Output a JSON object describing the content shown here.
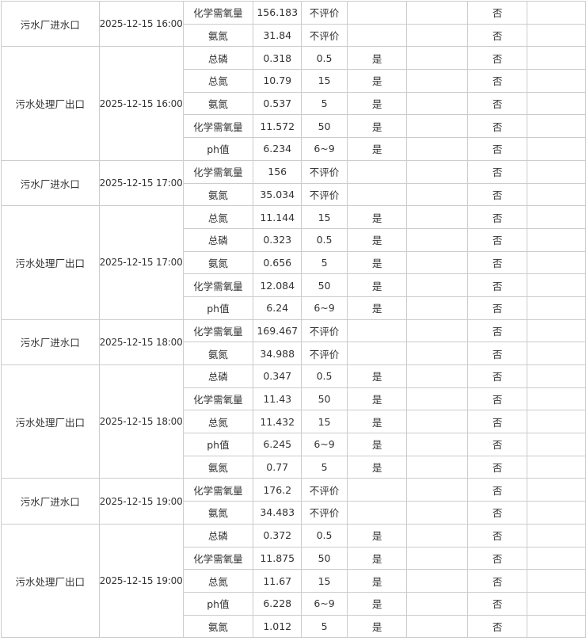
{
  "groups": [
    {
      "site": "污水厂进水口",
      "time": "2025-12-15 16:00",
      "rows": [
        {
          "param": "化学需氧量",
          "value": "156.183",
          "limit": "不评价",
          "pass": "",
          "extra": "",
          "over": "否"
        },
        {
          "param": "氨氮",
          "value": "31.84",
          "limit": "不评价",
          "pass": "",
          "extra": "",
          "over": "否"
        }
      ]
    },
    {
      "site": "污水处理厂出口",
      "time": "2025-12-15 16:00",
      "rows": [
        {
          "param": "总磷",
          "value": "0.318",
          "limit": "0.5",
          "pass": "是",
          "extra": "",
          "over": "否"
        },
        {
          "param": "总氮",
          "value": "10.79",
          "limit": "15",
          "pass": "是",
          "extra": "",
          "over": "否"
        },
        {
          "param": "氨氮",
          "value": "0.537",
          "limit": "5",
          "pass": "是",
          "extra": "",
          "over": "否"
        },
        {
          "param": "化学需氧量",
          "value": "11.572",
          "limit": "50",
          "pass": "是",
          "extra": "",
          "over": "否"
        },
        {
          "param": "ph值",
          "value": "6.234",
          "limit": "6~9",
          "pass": "是",
          "extra": "",
          "over": "否"
        }
      ]
    },
    {
      "site": "污水厂进水口",
      "time": "2025-12-15 17:00",
      "rows": [
        {
          "param": "化学需氧量",
          "value": "156",
          "limit": "不评价",
          "pass": "",
          "extra": "",
          "over": "否"
        },
        {
          "param": "氨氮",
          "value": "35.034",
          "limit": "不评价",
          "pass": "",
          "extra": "",
          "over": "否"
        }
      ]
    },
    {
      "site": "污水处理厂出口",
      "time": "2025-12-15 17:00",
      "rows": [
        {
          "param": "总氮",
          "value": "11.144",
          "limit": "15",
          "pass": "是",
          "extra": "",
          "over": "否"
        },
        {
          "param": "总磷",
          "value": "0.323",
          "limit": "0.5",
          "pass": "是",
          "extra": "",
          "over": "否"
        },
        {
          "param": "氨氮",
          "value": "0.656",
          "limit": "5",
          "pass": "是",
          "extra": "",
          "over": "否"
        },
        {
          "param": "化学需氧量",
          "value": "12.084",
          "limit": "50",
          "pass": "是",
          "extra": "",
          "over": "否"
        },
        {
          "param": "ph值",
          "value": "6.24",
          "limit": "6~9",
          "pass": "是",
          "extra": "",
          "over": "否"
        }
      ]
    },
    {
      "site": "污水厂进水口",
      "time": "2025-12-15 18:00",
      "rows": [
        {
          "param": "化学需氧量",
          "value": "169.467",
          "limit": "不评价",
          "pass": "",
          "extra": "",
          "over": "否"
        },
        {
          "param": "氨氮",
          "value": "34.988",
          "limit": "不评价",
          "pass": "",
          "extra": "",
          "over": "否"
        }
      ]
    },
    {
      "site": "污水处理厂出口",
      "time": "2025-12-15 18:00",
      "rows": [
        {
          "param": "总磷",
          "value": "0.347",
          "limit": "0.5",
          "pass": "是",
          "extra": "",
          "over": "否"
        },
        {
          "param": "化学需氧量",
          "value": "11.43",
          "limit": "50",
          "pass": "是",
          "extra": "",
          "over": "否"
        },
        {
          "param": "总氮",
          "value": "11.432",
          "limit": "15",
          "pass": "是",
          "extra": "",
          "over": "否"
        },
        {
          "param": "ph值",
          "value": "6.245",
          "limit": "6~9",
          "pass": "是",
          "extra": "",
          "over": "否"
        },
        {
          "param": "氨氮",
          "value": "0.77",
          "limit": "5",
          "pass": "是",
          "extra": "",
          "over": "否"
        }
      ]
    },
    {
      "site": "污水厂进水口",
      "time": "2025-12-15 19:00",
      "rows": [
        {
          "param": "化学需氧量",
          "value": "176.2",
          "limit": "不评价",
          "pass": "",
          "extra": "",
          "over": "否"
        },
        {
          "param": "氨氮",
          "value": "34.483",
          "limit": "不评价",
          "pass": "",
          "extra": "",
          "over": "否"
        }
      ]
    },
    {
      "site": "污水处理厂出口",
      "time": "2025-12-15 19:00",
      "rows": [
        {
          "param": "总磷",
          "value": "0.372",
          "limit": "0.5",
          "pass": "是",
          "extra": "",
          "over": "否"
        },
        {
          "param": "化学需氧量",
          "value": "11.875",
          "limit": "50",
          "pass": "是",
          "extra": "",
          "over": "否"
        },
        {
          "param": "总氮",
          "value": "11.67",
          "limit": "15",
          "pass": "是",
          "extra": "",
          "over": "否"
        },
        {
          "param": "ph值",
          "value": "6.228",
          "limit": "6~9",
          "pass": "是",
          "extra": "",
          "over": "否"
        },
        {
          "param": "氨氮",
          "value": "1.012",
          "limit": "5",
          "pass": "是",
          "extra": "",
          "over": "否"
        }
      ]
    }
  ]
}
